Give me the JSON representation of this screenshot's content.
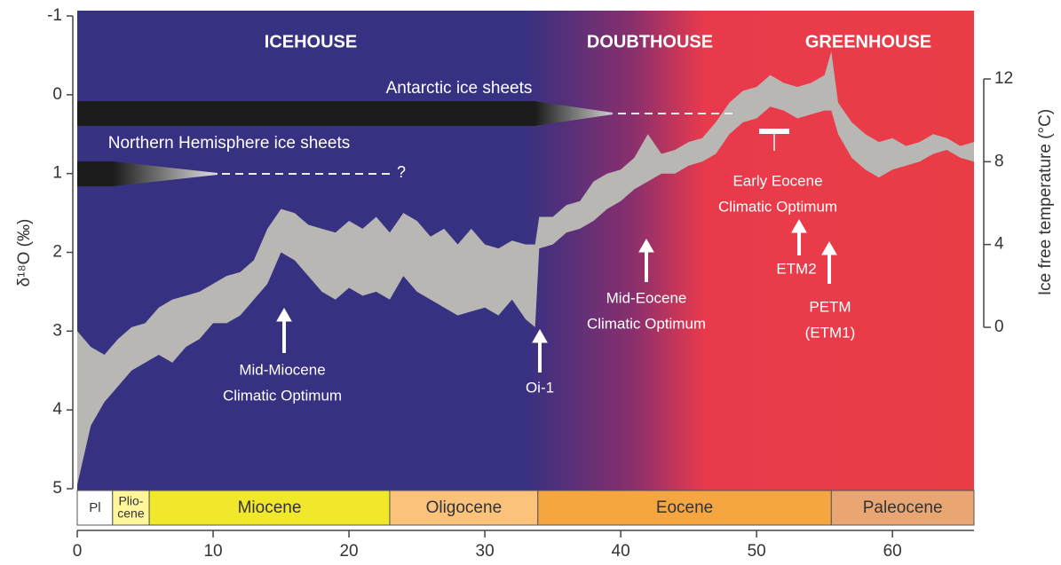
{
  "chart_data": {
    "type": "band",
    "ylabel": "δ¹⁸O (‰)",
    "y2label": "Ice free temperature (°C)",
    "xlim": [
      0,
      66
    ],
    "xticks": [
      0,
      10,
      20,
      30,
      40,
      50,
      60
    ],
    "ylim": [
      -1,
      5
    ],
    "yticks": [
      -1,
      0,
      1,
      2,
      3,
      4,
      5
    ],
    "y2lim": [
      0,
      12
    ],
    "y2ticks": [
      0,
      4,
      8,
      12
    ],
    "color": "#b9b7b4",
    "band": {
      "x": [
        0,
        1,
        2,
        3,
        4,
        5,
        6,
        7,
        8,
        9,
        10,
        11,
        12,
        13,
        14,
        15,
        16,
        17,
        18,
        19,
        20,
        21,
        22,
        23,
        24,
        25,
        26,
        27,
        28,
        29,
        30,
        31,
        32,
        33,
        33.7,
        34,
        35,
        36,
        37,
        38,
        39,
        40,
        41,
        42,
        43,
        44,
        45,
        46,
        47,
        48,
        49,
        50,
        51,
        52,
        53,
        54,
        55,
        55.5,
        56,
        57,
        58,
        59,
        60,
        61,
        62,
        63,
        64,
        65,
        66
      ],
      "min": [
        3.0,
        3.2,
        3.3,
        3.1,
        2.95,
        2.9,
        2.7,
        2.6,
        2.55,
        2.5,
        2.4,
        2.3,
        2.25,
        2.1,
        1.7,
        1.45,
        1.5,
        1.65,
        1.7,
        1.75,
        1.6,
        1.7,
        1.55,
        1.75,
        1.5,
        1.6,
        1.8,
        1.7,
        1.9,
        1.7,
        1.9,
        1.95,
        1.85,
        1.9,
        1.9,
        1.55,
        1.55,
        1.4,
        1.35,
        1.1,
        1.0,
        0.95,
        0.8,
        0.5,
        0.75,
        0.7,
        0.6,
        0.55,
        0.35,
        0.1,
        -0.05,
        -0.1,
        -0.25,
        -0.15,
        -0.1,
        -0.15,
        -0.25,
        -0.55,
        0.1,
        0.35,
        0.5,
        0.6,
        0.55,
        0.65,
        0.6,
        0.5,
        0.55,
        0.65,
        0.6
      ],
      "max": [
        4.95,
        4.2,
        3.9,
        3.7,
        3.5,
        3.4,
        3.3,
        3.4,
        3.2,
        3.1,
        2.9,
        2.9,
        2.8,
        2.6,
        2.4,
        2.0,
        2.1,
        2.3,
        2.5,
        2.6,
        2.45,
        2.55,
        2.5,
        2.6,
        2.3,
        2.5,
        2.6,
        2.7,
        2.8,
        2.75,
        2.7,
        2.8,
        2.6,
        2.85,
        2.95,
        1.95,
        1.9,
        1.75,
        1.7,
        1.6,
        1.45,
        1.35,
        1.2,
        1.1,
        1.0,
        1.0,
        0.9,
        0.85,
        0.75,
        0.5,
        0.35,
        0.3,
        0.15,
        0.2,
        0.3,
        0.25,
        0.2,
        0.2,
        0.5,
        0.8,
        0.95,
        1.05,
        0.95,
        0.9,
        0.85,
        0.75,
        0.7,
        0.8,
        0.85
      ]
    },
    "epochs": [
      {
        "start": 0,
        "end": 2.6,
        "lines": [
          "Pl"
        ],
        "color": "#ffffff"
      },
      {
        "start": 2.6,
        "end": 5.3,
        "lines": [
          "Plio-",
          "cene"
        ],
        "color": "#fff59a"
      },
      {
        "start": 5.3,
        "end": 23,
        "lines": [
          "Miocene"
        ],
        "color": "#f1e82c"
      },
      {
        "start": 23,
        "end": 33.9,
        "lines": [
          "Oligocene"
        ],
        "color": "#fbc27c"
      },
      {
        "start": 33.9,
        "end": 55.5,
        "lines": [
          "Eocene"
        ],
        "color": "#f6a640"
      },
      {
        "start": 55.5,
        "end": 66,
        "lines": [
          "Paleocene"
        ],
        "color": "#e9a673"
      }
    ],
    "annotations": [
      {
        "lines": [
          "ICEHOUSE"
        ]
      },
      {
        "lines": [
          "DOUBTHOUSE"
        ]
      },
      {
        "lines": [
          "GREENHOUSE"
        ]
      },
      {
        "lines": [
          "Antarctic ice sheets"
        ]
      },
      {
        "lines": [
          "Northern Hemisphere ice sheets"
        ]
      },
      {
        "lines": [
          "?"
        ]
      },
      {
        "lines": [
          "Mid-Miocene",
          "Climatic Optimum"
        ]
      },
      {
        "lines": [
          "Oi-1"
        ]
      },
      {
        "lines": [
          "Mid-Eocene",
          "Climatic Optimum"
        ]
      },
      {
        "lines": [
          "Early Eocene",
          "Climatic Optimum"
        ]
      },
      {
        "lines": [
          "ETM2"
        ]
      },
      {
        "lines": [
          "PETM",
          "(ETM1)"
        ]
      }
    ]
  }
}
